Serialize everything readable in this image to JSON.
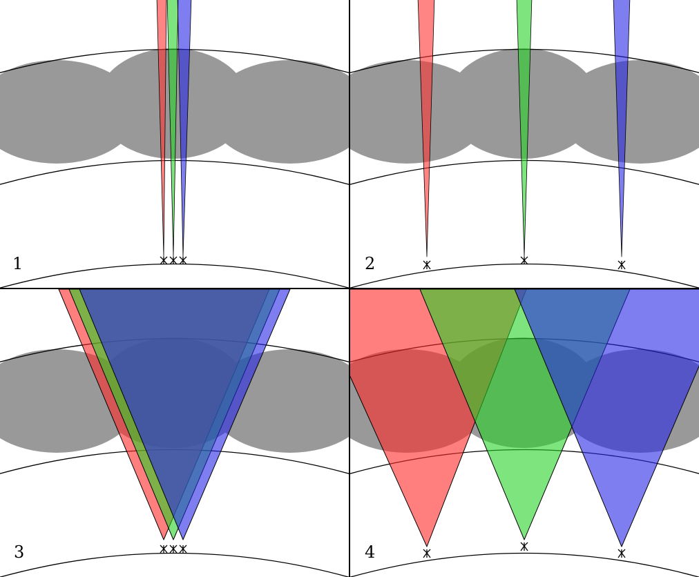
{
  "panels": [
    {
      "id": "1",
      "label": "1"
    },
    {
      "id": "2",
      "label": "2"
    },
    {
      "id": "3",
      "label": "3"
    },
    {
      "id": "4",
      "label": "4"
    }
  ],
  "colors": {
    "red": "#ff6f6f",
    "green": "#6ef06e",
    "blue": "#7575ff",
    "layer": "#999999",
    "outline": "#000000"
  },
  "icons": {
    "antenna": "antenna-icon"
  }
}
